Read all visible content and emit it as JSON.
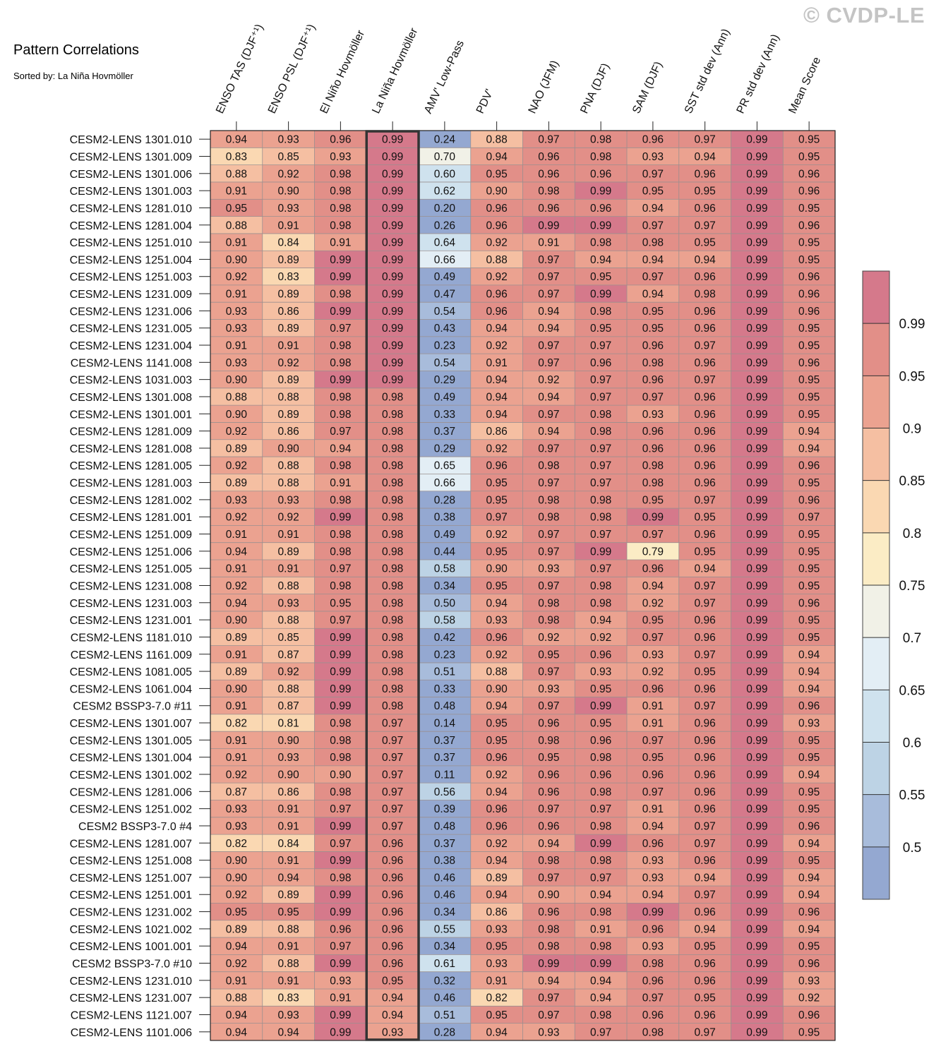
{
  "title": "Pattern Correlations",
  "subtitle": "Sorted by: La Niña Hovmöller",
  "watermark": "© CVDP-LE",
  "chart_data": {
    "type": "heatmap",
    "title": "Pattern Correlations",
    "sorted_by": "La Niña Hovmöller",
    "highlighted_column": 3,
    "columns": [
      "ENSO TAS (DJF⁺¹)",
      "ENSO PSL (DJF⁺¹)",
      "El Niño Hovmöller",
      "La Niña Hovmöller",
      "AMV' Low-Pass",
      "PDV'",
      "NAO (JFM)",
      "PNA (DJF)",
      "SAM (DJF)",
      "SST std dev (Ann)",
      "PR std dev (Ann)",
      "Mean Score"
    ],
    "rows": [
      "CESM2-LENS 1301.010",
      "CESM2-LENS 1301.009",
      "CESM2-LENS 1301.006",
      "CESM2-LENS 1301.003",
      "CESM2-LENS 1281.010",
      "CESM2-LENS 1281.004",
      "CESM2-LENS 1251.010",
      "CESM2-LENS 1251.004",
      "CESM2-LENS 1251.003",
      "CESM2-LENS 1231.009",
      "CESM2-LENS 1231.006",
      "CESM2-LENS 1231.005",
      "CESM2-LENS 1231.004",
      "CESM2-LENS 1141.008",
      "CESM2-LENS 1031.003",
      "CESM2-LENS 1301.008",
      "CESM2-LENS 1301.001",
      "CESM2-LENS 1281.009",
      "CESM2-LENS 1281.008",
      "CESM2-LENS 1281.005",
      "CESM2-LENS 1281.003",
      "CESM2-LENS 1281.002",
      "CESM2-LENS 1281.001",
      "CESM2-LENS 1251.009",
      "CESM2-LENS 1251.006",
      "CESM2-LENS 1251.005",
      "CESM2-LENS 1231.008",
      "CESM2-LENS 1231.003",
      "CESM2-LENS 1231.001",
      "CESM2-LENS 1181.010",
      "CESM2-LENS 1161.009",
      "CESM2-LENS 1081.005",
      "CESM2-LENS 1061.004",
      "CESM2 BSSP3-7.0 #11",
      "CESM2-LENS 1301.007",
      "CESM2-LENS 1301.005",
      "CESM2-LENS 1301.004",
      "CESM2-LENS 1301.002",
      "CESM2-LENS 1281.006",
      "CESM2-LENS 1251.002",
      "CESM2 BSSP3-7.0 #4",
      "CESM2-LENS 1281.007",
      "CESM2-LENS 1251.008",
      "CESM2-LENS 1251.007",
      "CESM2-LENS 1251.001",
      "CESM2-LENS 1231.002",
      "CESM2-LENS 1021.002",
      "CESM2-LENS 1001.001",
      "CESM2 BSSP3-7.0 #10",
      "CESM2-LENS 1231.010",
      "CESM2-LENS 1231.007",
      "CESM2-LENS 1121.007",
      "CESM2-LENS 1101.006"
    ],
    "values": [
      [
        "0.94",
        "0.93",
        "0.96",
        "0.99",
        "0.24",
        "0.88",
        "0.97",
        "0.98",
        "0.96",
        "0.97",
        "0.99",
        "0.95"
      ],
      [
        "0.83",
        "0.85",
        "0.93",
        "0.99",
        "0.70",
        "0.94",
        "0.96",
        "0.98",
        "0.93",
        "0.94",
        "0.99",
        "0.95"
      ],
      [
        "0.88",
        "0.92",
        "0.98",
        "0.99",
        "0.60",
        "0.95",
        "0.96",
        "0.96",
        "0.97",
        "0.96",
        "0.99",
        "0.96"
      ],
      [
        "0.91",
        "0.90",
        "0.98",
        "0.99",
        "0.62",
        "0.90",
        "0.98",
        "0.99",
        "0.95",
        "0.95",
        "0.99",
        "0.96"
      ],
      [
        "0.95",
        "0.93",
        "0.98",
        "0.99",
        "0.20",
        "0.96",
        "0.96",
        "0.96",
        "0.94",
        "0.96",
        "0.99",
        "0.95"
      ],
      [
        "0.88",
        "0.91",
        "0.98",
        "0.99",
        "0.26",
        "0.96",
        "0.99",
        "0.99",
        "0.97",
        "0.97",
        "0.99",
        "0.96"
      ],
      [
        "0.91",
        "0.84",
        "0.91",
        "0.99",
        "0.64",
        "0.92",
        "0.91",
        "0.98",
        "0.98",
        "0.95",
        "0.99",
        "0.95"
      ],
      [
        "0.90",
        "0.89",
        "0.99",
        "0.99",
        "0.66",
        "0.88",
        "0.97",
        "0.94",
        "0.94",
        "0.94",
        "0.99",
        "0.95"
      ],
      [
        "0.92",
        "0.83",
        "0.99",
        "0.99",
        "0.49",
        "0.92",
        "0.97",
        "0.95",
        "0.97",
        "0.96",
        "0.99",
        "0.96"
      ],
      [
        "0.91",
        "0.89",
        "0.98",
        "0.99",
        "0.47",
        "0.96",
        "0.97",
        "0.99",
        "0.94",
        "0.98",
        "0.99",
        "0.96"
      ],
      [
        "0.93",
        "0.86",
        "0.99",
        "0.99",
        "0.54",
        "0.96",
        "0.94",
        "0.98",
        "0.95",
        "0.96",
        "0.99",
        "0.96"
      ],
      [
        "0.93",
        "0.89",
        "0.97",
        "0.99",
        "0.43",
        "0.94",
        "0.94",
        "0.95",
        "0.95",
        "0.96",
        "0.99",
        "0.95"
      ],
      [
        "0.91",
        "0.91",
        "0.98",
        "0.99",
        "0.23",
        "0.92",
        "0.97",
        "0.97",
        "0.96",
        "0.97",
        "0.99",
        "0.95"
      ],
      [
        "0.93",
        "0.92",
        "0.98",
        "0.99",
        "0.54",
        "0.91",
        "0.97",
        "0.96",
        "0.98",
        "0.96",
        "0.99",
        "0.96"
      ],
      [
        "0.90",
        "0.89",
        "0.99",
        "0.99",
        "0.29",
        "0.94",
        "0.92",
        "0.97",
        "0.96",
        "0.97",
        "0.99",
        "0.95"
      ],
      [
        "0.88",
        "0.88",
        "0.98",
        "0.98",
        "0.49",
        "0.94",
        "0.94",
        "0.97",
        "0.97",
        "0.96",
        "0.99",
        "0.95"
      ],
      [
        "0.90",
        "0.89",
        "0.98",
        "0.98",
        "0.33",
        "0.94",
        "0.97",
        "0.98",
        "0.93",
        "0.96",
        "0.99",
        "0.95"
      ],
      [
        "0.92",
        "0.86",
        "0.97",
        "0.98",
        "0.37",
        "0.86",
        "0.94",
        "0.98",
        "0.96",
        "0.96",
        "0.99",
        "0.94"
      ],
      [
        "0.89",
        "0.90",
        "0.94",
        "0.98",
        "0.29",
        "0.92",
        "0.97",
        "0.97",
        "0.96",
        "0.96",
        "0.99",
        "0.94"
      ],
      [
        "0.92",
        "0.88",
        "0.98",
        "0.98",
        "0.65",
        "0.96",
        "0.98",
        "0.97",
        "0.98",
        "0.96",
        "0.99",
        "0.96"
      ],
      [
        "0.89",
        "0.88",
        "0.91",
        "0.98",
        "0.66",
        "0.95",
        "0.97",
        "0.97",
        "0.98",
        "0.96",
        "0.99",
        "0.95"
      ],
      [
        "0.93",
        "0.93",
        "0.98",
        "0.98",
        "0.28",
        "0.95",
        "0.98",
        "0.98",
        "0.95",
        "0.97",
        "0.99",
        "0.96"
      ],
      [
        "0.92",
        "0.92",
        "0.99",
        "0.98",
        "0.38",
        "0.97",
        "0.98",
        "0.98",
        "0.99",
        "0.95",
        "0.99",
        "0.97"
      ],
      [
        "0.91",
        "0.91",
        "0.98",
        "0.98",
        "0.49",
        "0.92",
        "0.97",
        "0.97",
        "0.97",
        "0.96",
        "0.99",
        "0.95"
      ],
      [
        "0.94",
        "0.89",
        "0.98",
        "0.98",
        "0.44",
        "0.95",
        "0.97",
        "0.99",
        "0.79",
        "0.95",
        "0.99",
        "0.95"
      ],
      [
        "0.91",
        "0.91",
        "0.97",
        "0.98",
        "0.58",
        "0.90",
        "0.93",
        "0.97",
        "0.96",
        "0.94",
        "0.99",
        "0.95"
      ],
      [
        "0.92",
        "0.88",
        "0.98",
        "0.98",
        "0.34",
        "0.95",
        "0.97",
        "0.98",
        "0.94",
        "0.97",
        "0.99",
        "0.95"
      ],
      [
        "0.94",
        "0.93",
        "0.95",
        "0.98",
        "0.50",
        "0.94",
        "0.98",
        "0.98",
        "0.92",
        "0.97",
        "0.99",
        "0.96"
      ],
      [
        "0.90",
        "0.88",
        "0.97",
        "0.98",
        "0.58",
        "0.93",
        "0.98",
        "0.94",
        "0.95",
        "0.96",
        "0.99",
        "0.95"
      ],
      [
        "0.89",
        "0.85",
        "0.99",
        "0.98",
        "0.42",
        "0.96",
        "0.92",
        "0.92",
        "0.97",
        "0.96",
        "0.99",
        "0.95"
      ],
      [
        "0.91",
        "0.87",
        "0.99",
        "0.98",
        "0.23",
        "0.92",
        "0.95",
        "0.96",
        "0.93",
        "0.97",
        "0.99",
        "0.94"
      ],
      [
        "0.89",
        "0.92",
        "0.99",
        "0.98",
        "0.51",
        "0.88",
        "0.97",
        "0.93",
        "0.92",
        "0.95",
        "0.99",
        "0.94"
      ],
      [
        "0.90",
        "0.88",
        "0.99",
        "0.98",
        "0.33",
        "0.90",
        "0.93",
        "0.95",
        "0.96",
        "0.96",
        "0.99",
        "0.94"
      ],
      [
        "0.91",
        "0.87",
        "0.99",
        "0.98",
        "0.48",
        "0.94",
        "0.97",
        "0.99",
        "0.91",
        "0.97",
        "0.99",
        "0.96"
      ],
      [
        "0.82",
        "0.81",
        "0.98",
        "0.97",
        "0.14",
        "0.95",
        "0.96",
        "0.95",
        "0.91",
        "0.96",
        "0.99",
        "0.93"
      ],
      [
        "0.91",
        "0.90",
        "0.98",
        "0.97",
        "0.37",
        "0.95",
        "0.98",
        "0.96",
        "0.97",
        "0.96",
        "0.99",
        "0.95"
      ],
      [
        "0.91",
        "0.93",
        "0.98",
        "0.97",
        "0.37",
        "0.96",
        "0.95",
        "0.98",
        "0.95",
        "0.96",
        "0.99",
        "0.95"
      ],
      [
        "0.92",
        "0.90",
        "0.90",
        "0.97",
        "0.11",
        "0.92",
        "0.96",
        "0.96",
        "0.96",
        "0.96",
        "0.99",
        "0.94"
      ],
      [
        "0.87",
        "0.86",
        "0.98",
        "0.97",
        "0.56",
        "0.94",
        "0.96",
        "0.98",
        "0.97",
        "0.96",
        "0.99",
        "0.95"
      ],
      [
        "0.93",
        "0.91",
        "0.97",
        "0.97",
        "0.39",
        "0.96",
        "0.97",
        "0.97",
        "0.91",
        "0.96",
        "0.99",
        "0.95"
      ],
      [
        "0.93",
        "0.91",
        "0.99",
        "0.97",
        "0.48",
        "0.96",
        "0.96",
        "0.98",
        "0.94",
        "0.97",
        "0.99",
        "0.96"
      ],
      [
        "0.82",
        "0.84",
        "0.97",
        "0.96",
        "0.37",
        "0.92",
        "0.94",
        "0.99",
        "0.96",
        "0.97",
        "0.99",
        "0.94"
      ],
      [
        "0.90",
        "0.91",
        "0.99",
        "0.96",
        "0.38",
        "0.94",
        "0.98",
        "0.98",
        "0.93",
        "0.96",
        "0.99",
        "0.95"
      ],
      [
        "0.90",
        "0.94",
        "0.98",
        "0.96",
        "0.46",
        "0.89",
        "0.97",
        "0.97",
        "0.93",
        "0.94",
        "0.99",
        "0.94"
      ],
      [
        "0.92",
        "0.89",
        "0.99",
        "0.96",
        "0.46",
        "0.94",
        "0.90",
        "0.94",
        "0.94",
        "0.97",
        "0.99",
        "0.94"
      ],
      [
        "0.95",
        "0.95",
        "0.99",
        "0.96",
        "0.34",
        "0.86",
        "0.96",
        "0.98",
        "0.99",
        "0.96",
        "0.99",
        "0.96"
      ],
      [
        "0.89",
        "0.88",
        "0.96",
        "0.96",
        "0.55",
        "0.93",
        "0.98",
        "0.91",
        "0.96",
        "0.94",
        "0.99",
        "0.94"
      ],
      [
        "0.94",
        "0.91",
        "0.97",
        "0.96",
        "0.34",
        "0.95",
        "0.98",
        "0.98",
        "0.93",
        "0.95",
        "0.99",
        "0.95"
      ],
      [
        "0.92",
        "0.88",
        "0.99",
        "0.96",
        "0.61",
        "0.93",
        "0.99",
        "0.99",
        "0.98",
        "0.96",
        "0.99",
        "0.96"
      ],
      [
        "0.91",
        "0.91",
        "0.93",
        "0.95",
        "0.32",
        "0.91",
        "0.94",
        "0.94",
        "0.96",
        "0.96",
        "0.99",
        "0.93"
      ],
      [
        "0.88",
        "0.83",
        "0.91",
        "0.94",
        "0.46",
        "0.82",
        "0.97",
        "0.94",
        "0.97",
        "0.95",
        "0.99",
        "0.92"
      ],
      [
        "0.94",
        "0.93",
        "0.99",
        "0.94",
        "0.51",
        "0.95",
        "0.97",
        "0.98",
        "0.96",
        "0.96",
        "0.99",
        "0.96"
      ],
      [
        "0.94",
        "0.94",
        "0.99",
        "0.93",
        "0.28",
        "0.94",
        "0.93",
        "0.97",
        "0.98",
        "0.97",
        "0.99",
        "0.95"
      ]
    ],
    "colorbar": {
      "levels": [
        0.5,
        0.55,
        0.6,
        0.65,
        0.7,
        0.75,
        0.8,
        0.85,
        0.9,
        0.95,
        0.99
      ],
      "labels": [
        "0.5",
        "0.55",
        "0.6",
        "0.65",
        "0.7",
        "0.75",
        "0.8",
        "0.85",
        "0.9",
        "0.95",
        "0.99"
      ],
      "colors": [
        "#94a8d1",
        "#a8bcdb",
        "#bdd3e5",
        "#cfe2ee",
        "#e3eef5",
        "#f1f1e7",
        "#fbecc5",
        "#fad8b2",
        "#f5bfa2",
        "#eba290",
        "#e28f88",
        "#d5798b"
      ]
    }
  }
}
